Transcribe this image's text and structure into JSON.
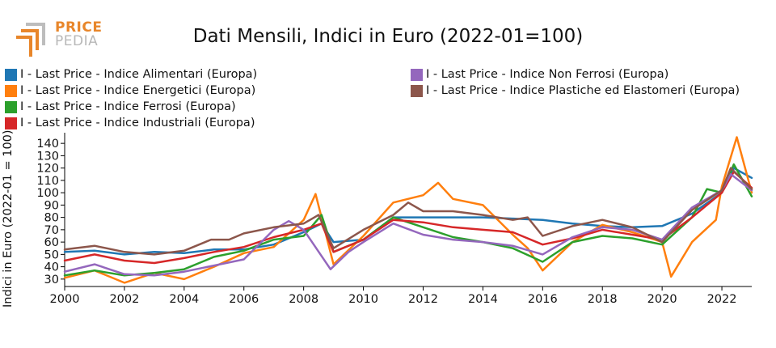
{
  "brand": {
    "line1": "PRICE",
    "line2": "PEDIA"
  },
  "chart_data": {
    "type": "line",
    "title": "Dati Mensili, Indici in Euro (2022-01=100)",
    "xlabel": "",
    "ylabel": "Indici in Euro (2022-01 = 100)",
    "xlim": [
      2000,
      2023
    ],
    "ylim": [
      24,
      146
    ],
    "x_ticks": [
      2000,
      2002,
      2004,
      2006,
      2008,
      2010,
      2012,
      2014,
      2016,
      2018,
      2020,
      2022
    ],
    "y_ticks": [
      30,
      40,
      50,
      60,
      70,
      80,
      90,
      100,
      110,
      120,
      130,
      140
    ],
    "grid": false,
    "legend_position": "top",
    "series": [
      {
        "name": "I - Last Price - Indice Alimentari (Europa)",
        "color": "#1f77b4",
        "x": [
          2000,
          2001,
          2002,
          2003,
          2004,
          2005,
          2006,
          2007,
          2008,
          2008.6,
          2009,
          2010,
          2011,
          2012,
          2013,
          2014,
          2015,
          2016,
          2017,
          2018,
          2019,
          2020,
          2021,
          2022,
          2022.4,
          2023
        ],
        "y": [
          52,
          53,
          50,
          52,
          51,
          54,
          54,
          58,
          68,
          75,
          60,
          62,
          80,
          80,
          80,
          80,
          79,
          78,
          75,
          73,
          72,
          73,
          83,
          100,
          120,
          112
        ]
      },
      {
        "name": "I - Last Price - Indice Energetici (Europa)",
        "color": "#ff7f0e",
        "x": [
          2000,
          2001,
          2002,
          2003,
          2004,
          2005,
          2006,
          2007,
          2008,
          2008.4,
          2009,
          2010,
          2011,
          2012,
          2012.5,
          2013,
          2014,
          2015,
          2015.5,
          2016,
          2017,
          2018,
          2019,
          2020,
          2020.3,
          2021,
          2021.8,
          2022,
          2022.5,
          2023
        ],
        "y": [
          31,
          37,
          27,
          35,
          30,
          40,
          51,
          56,
          78,
          99,
          42,
          65,
          92,
          98,
          108,
          95,
          90,
          66,
          55,
          37,
          60,
          74,
          68,
          60,
          32,
          60,
          78,
          105,
          145,
          100
        ]
      },
      {
        "name": "I - Last Price - Indice Ferrosi (Europa)",
        "color": "#2ca02c",
        "x": [
          2000,
          2001,
          2002,
          2003,
          2004,
          2005,
          2006,
          2007,
          2008,
          2008.6,
          2009,
          2010,
          2011,
          2012,
          2013,
          2014,
          2015,
          2016,
          2017,
          2018,
          2019,
          2020,
          2021,
          2021.5,
          2022,
          2022.4,
          2023
        ],
        "y": [
          33,
          37,
          33,
          35,
          38,
          48,
          53,
          62,
          65,
          82,
          52,
          62,
          80,
          72,
          64,
          60,
          55,
          44,
          60,
          65,
          63,
          58,
          80,
          103,
          100,
          123,
          97
        ]
      },
      {
        "name": "I - Last Price - Indice Industriali (Europa)",
        "color": "#d62728",
        "x": [
          2000,
          2001,
          2002,
          2003,
          2004,
          2005,
          2006,
          2007,
          2008,
          2008.6,
          2009,
          2010,
          2011,
          2012,
          2013,
          2014,
          2015,
          2016,
          2017,
          2018,
          2019,
          2020,
          2021,
          2022,
          2022.4,
          2023
        ],
        "y": [
          45,
          50,
          45,
          43,
          47,
          52,
          56,
          64,
          70,
          75,
          52,
          62,
          78,
          76,
          72,
          70,
          68,
          58,
          63,
          70,
          66,
          62,
          80,
          100,
          117,
          104
        ]
      },
      {
        "name": "I - Last Price - Indice Non Ferrosi (Europa)",
        "color": "#9467bd",
        "x": [
          2000,
          2001,
          2002,
          2003,
          2004,
          2005,
          2006,
          2007,
          2007.5,
          2008,
          2008.9,
          2009.5,
          2010,
          2011,
          2012,
          2013,
          2014,
          2015,
          2016,
          2017,
          2018,
          2019,
          2020,
          2021,
          2022,
          2022.3,
          2023
        ],
        "y": [
          36,
          42,
          34,
          33,
          36,
          41,
          46,
          70,
          77,
          70,
          38,
          52,
          60,
          75,
          66,
          62,
          60,
          57,
          50,
          64,
          72,
          70,
          62,
          88,
          102,
          115,
          102
        ]
      },
      {
        "name": "I - Last Price - Indice Plastiche ed Elastomeri (Europa)",
        "color": "#8c564b",
        "x": [
          2000,
          2001,
          2002,
          2003,
          2004,
          2004.9,
          2005.5,
          2006,
          2007,
          2008,
          2008.5,
          2009,
          2010,
          2011,
          2011.5,
          2012,
          2013,
          2014,
          2015,
          2015.5,
          2016,
          2017,
          2018,
          2019,
          2020,
          2021,
          2022,
          2022.3,
          2023
        ],
        "y": [
          54,
          57,
          52,
          50,
          53,
          62,
          62,
          67,
          72,
          75,
          82,
          55,
          70,
          82,
          92,
          85,
          85,
          82,
          78,
          80,
          65,
          73,
          78,
          72,
          60,
          86,
          102,
          120,
          103
        ]
      }
    ]
  }
}
